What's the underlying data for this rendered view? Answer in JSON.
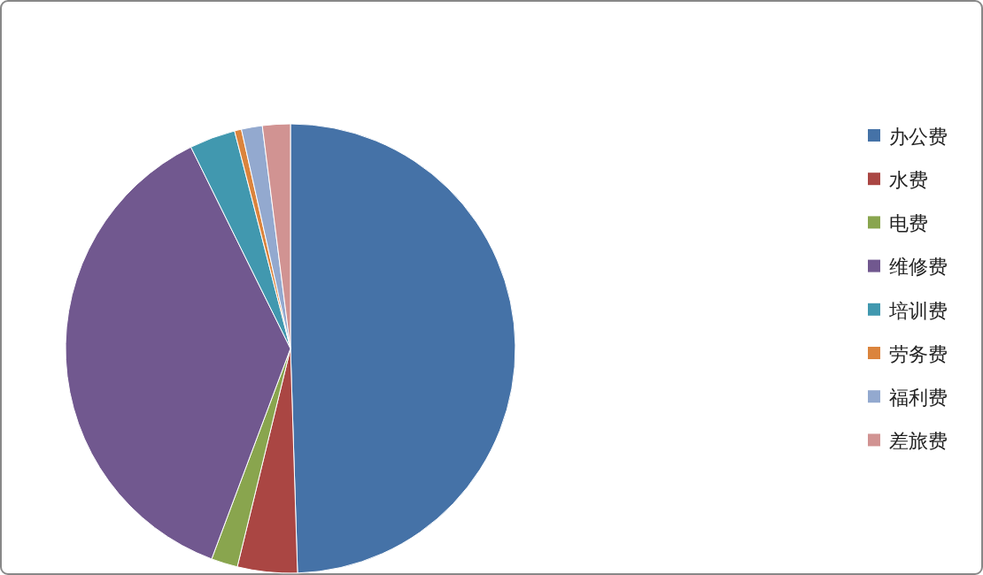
{
  "chart_data": {
    "type": "pie",
    "categories": [
      "办公费",
      "水费",
      "电费",
      "维修费",
      "培训费",
      "劳务费",
      "福利费",
      "差旅费"
    ],
    "values": [
      49.5,
      4.3,
      1.9,
      37,
      3.3,
      0.5,
      1.5,
      2
    ],
    "colors": [
      "#4572a7",
      "#aa4643",
      "#89a54e",
      "#71588f",
      "#4198af",
      "#db843d",
      "#93a9cf",
      "#d19392"
    ],
    "legend": "right"
  }
}
